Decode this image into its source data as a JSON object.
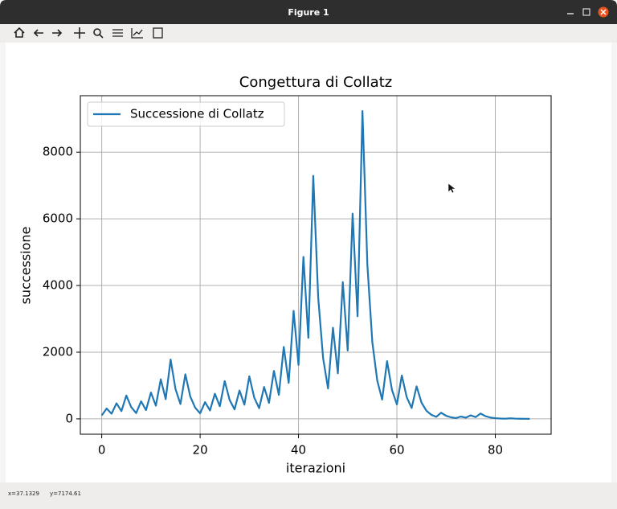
{
  "window": {
    "title": "Figure 1",
    "status_x": "x=37.1329",
    "status_y": "y=7174.61"
  },
  "chart_data": {
    "type": "line",
    "title": "Congettura di Collatz",
    "x_label": "iterazioni",
    "y_label": "successione",
    "x": [
      0,
      1,
      2,
      3,
      4,
      5,
      6,
      7,
      8,
      9,
      10,
      11,
      12,
      13,
      14,
      15,
      16,
      17,
      18,
      19,
      20,
      21,
      22,
      23,
      24,
      25,
      26,
      27,
      28,
      29,
      30,
      31,
      32,
      33,
      34,
      35,
      36,
      37,
      38,
      39,
      40,
      41,
      42,
      43,
      44,
      45,
      46,
      47,
      48,
      49,
      50,
      51,
      52,
      53,
      54,
      55,
      56,
      57,
      58,
      59,
      60,
      61,
      62,
      63,
      64,
      65,
      66,
      67,
      68,
      69,
      70,
      71,
      72,
      73,
      74,
      75,
      76,
      77,
      78,
      79,
      80,
      81,
      82,
      83,
      84,
      85,
      86,
      87
    ],
    "series": [
      {
        "name": "Successione di Collatz",
        "color": "#1f77b4",
        "values": [
          103,
          310,
          155,
          466,
          233,
          700,
          350,
          175,
          526,
          263,
          790,
          395,
          1186,
          593,
          1780,
          890,
          445,
          1336,
          668,
          334,
          167,
          502,
          251,
          754,
          377,
          1132,
          566,
          283,
          850,
          425,
          1276,
          638,
          319,
          958,
          479,
          1438,
          719,
          2158,
          1079,
          3238,
          1619,
          4858,
          2429,
          7288,
          3644,
          1822,
          911,
          2734,
          1367,
          4102,
          2051,
          6154,
          3077,
          9232,
          4616,
          2308,
          1154,
          577,
          1732,
          866,
          433,
          1300,
          650,
          325,
          976,
          488,
          244,
          122,
          61,
          184,
          92,
          46,
          23,
          70,
          35,
          106,
          53,
          160,
          80,
          40,
          20,
          10,
          5,
          16,
          8,
          4,
          2,
          1
        ]
      }
    ],
    "xlim": [
      -4.35,
      91.35
    ],
    "xticks": [
      0,
      20,
      40,
      60,
      80
    ],
    "ylim": [
      -460.55,
      9693.55
    ],
    "yticks": [
      0,
      2000,
      4000,
      6000,
      8000
    ],
    "grid": true,
    "legend": "upper-left"
  }
}
